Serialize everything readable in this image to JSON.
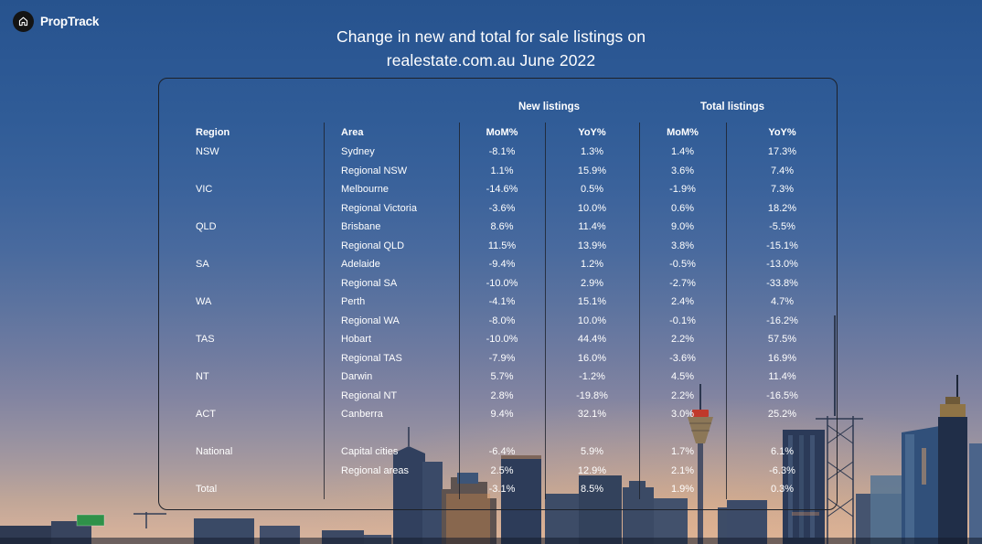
{
  "brand": {
    "name": "PropTrack",
    "icon": "house-icon"
  },
  "title": {
    "line1": "Change in new and total for sale listings on",
    "line2": "realestate.com.au June 2022"
  },
  "colors": {
    "sky_top": "#27538e",
    "sky_horizon": "#d8b59e",
    "panel_border": "#1d2129",
    "text": "#ffffff",
    "logo_circle": "#141414",
    "tower_red_band": "#c0392b",
    "road_sign_green": "#2f9149"
  },
  "chart_data": {
    "type": "table",
    "title": "Change in new and total for sale listings on realestate.com.au June 2022",
    "group_headers": [
      "New listings",
      "Total listings"
    ],
    "columns": [
      "Region",
      "Area",
      "MoM%",
      "YoY%",
      "MoM%",
      "YoY%"
    ],
    "rows": [
      [
        "NSW",
        "Sydney",
        "-8.1%",
        "1.3%",
        "1.4%",
        "17.3%"
      ],
      [
        "",
        "Regional NSW",
        "1.1%",
        "15.9%",
        "3.6%",
        "7.4%"
      ],
      [
        "VIC",
        "Melbourne",
        "-14.6%",
        "0.5%",
        "-1.9%",
        "7.3%"
      ],
      [
        "",
        "Regional Victoria",
        "-3.6%",
        "10.0%",
        "0.6%",
        "18.2%"
      ],
      [
        "QLD",
        "Brisbane",
        "8.6%",
        "11.4%",
        "9.0%",
        "-5.5%"
      ],
      [
        "",
        "Regional QLD",
        "11.5%",
        "13.9%",
        "3.8%",
        "-15.1%"
      ],
      [
        "SA",
        "Adelaide",
        "-9.4%",
        "1.2%",
        "-0.5%",
        "-13.0%"
      ],
      [
        "",
        "Regional SA",
        "-10.0%",
        "2.9%",
        "-2.7%",
        "-33.8%"
      ],
      [
        "WA",
        "Perth",
        "-4.1%",
        "15.1%",
        "2.4%",
        "4.7%"
      ],
      [
        "",
        "Regional WA",
        "-8.0%",
        "10.0%",
        "-0.1%",
        "-16.2%"
      ],
      [
        "TAS",
        "Hobart",
        "-10.0%",
        "44.4%",
        "2.2%",
        "57.5%"
      ],
      [
        "",
        "Regional TAS",
        "-7.9%",
        "16.0%",
        "-3.6%",
        "16.9%"
      ],
      [
        "NT",
        "Darwin",
        "5.7%",
        "-1.2%",
        "4.5%",
        "11.4%"
      ],
      [
        "",
        "Regional NT",
        "2.8%",
        "-19.8%",
        "2.2%",
        "-16.5%"
      ],
      [
        "ACT",
        "Canberra",
        "9.4%",
        "32.1%",
        "3.0%",
        "25.2%"
      ],
      null,
      [
        "National",
        "Capital cities",
        "-6.4%",
        "5.9%",
        "1.7%",
        "6.1%"
      ],
      [
        "",
        "Regional areas",
        "2.5%",
        "12.9%",
        "2.1%",
        "-6.3%"
      ],
      [
        "Total",
        "",
        "-3.1%",
        "8.5%",
        "1.9%",
        "0.3%"
      ]
    ]
  }
}
